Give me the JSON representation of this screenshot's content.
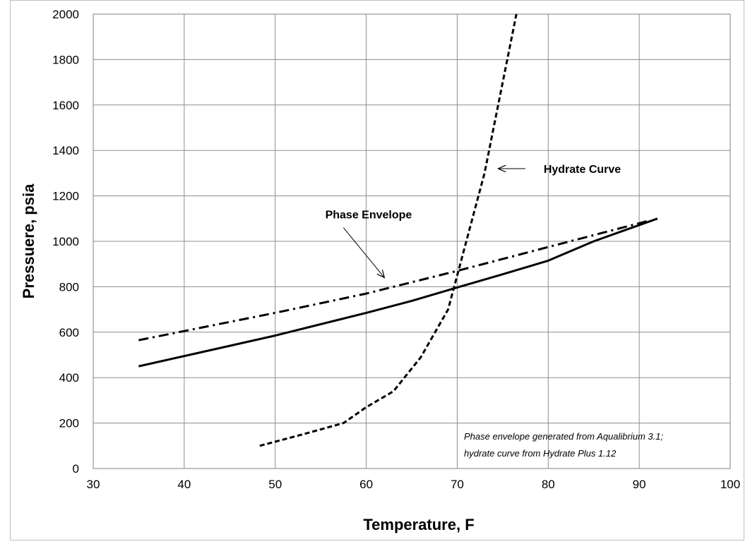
{
  "chart_data": {
    "type": "line",
    "title": "",
    "xlabel": "Temperature, F",
    "ylabel": "Pressuere, psia",
    "xlim": [
      30,
      100
    ],
    "ylim": [
      0,
      2000
    ],
    "xticks": [
      30,
      40,
      50,
      60,
      70,
      80,
      90,
      100
    ],
    "yticks": [
      0,
      200,
      400,
      600,
      800,
      1000,
      1200,
      1400,
      1600,
      1800,
      2000
    ],
    "grid": true,
    "legend": "none",
    "series": [
      {
        "style": "solid",
        "x": [
          35,
          40,
          45,
          50,
          55,
          60,
          65,
          70,
          75,
          80,
          85,
          92
        ],
        "y": [
          450,
          495,
          540,
          585,
          635,
          685,
          738,
          797,
          855,
          915,
          1000,
          1100
        ]
      },
      {
        "style": "dashdot",
        "x": [
          35,
          40,
          50,
          60,
          70,
          80,
          91
        ],
        "y": [
          565,
          605,
          685,
          770,
          870,
          975,
          1090
        ]
      },
      {
        "style": "dashed",
        "x": [
          48.3,
          53,
          57.5,
          60,
          63,
          66,
          69,
          71,
          73,
          74.5,
          75.5,
          76.5
        ],
        "y": [
          100,
          150,
          200,
          270,
          340,
          490,
          700,
          1000,
          1300,
          1600,
          1800,
          2000
        ]
      }
    ],
    "annotations": [
      {
        "text": "Hydrate Curve",
        "x": 79.5,
        "y": 1320,
        "arrow_from": [
          77.5,
          1320
        ],
        "arrow_to": [
          74.5,
          1320
        ]
      },
      {
        "text": "Phase Envelope",
        "x": 55.5,
        "y": 1120,
        "arrow_from": [
          57.5,
          1060
        ],
        "arrow_to": [
          62,
          840
        ]
      }
    ],
    "note_lines": [
      "Phase envelope generated from Aqualibrium 3.1;",
      "hydrate curve from Hydrate Plus 1.12"
    ]
  }
}
